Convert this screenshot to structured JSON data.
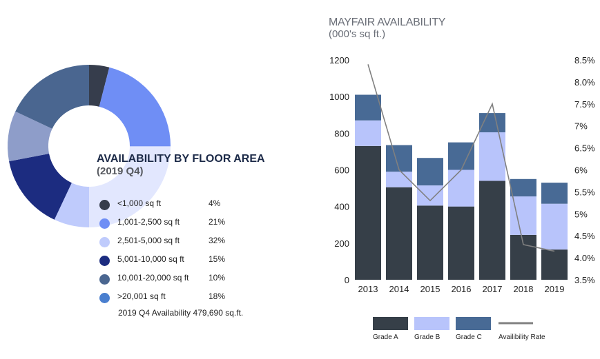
{
  "donut": {
    "title": "AVAILABILITY BY FLOOR AREA",
    "subtitle": "(2019 Q4)",
    "note": "2019 Q4 Availability 479,690 sq.ft.",
    "items": [
      {
        "label": "<1,000 sq ft",
        "percent_label": "4%",
        "value": 4,
        "color": "#363d4c"
      },
      {
        "label": "1,001-2,500 sq ft",
        "percent_label": "21%",
        "value": 21,
        "color": "#6f8ef5"
      },
      {
        "label": "2,501-5,000 sq ft",
        "percent_label": "32%",
        "value": 32,
        "color": "#bfcbfc"
      },
      {
        "label": "5,001-10,000 sq ft",
        "percent_label": "15%",
        "value": 15,
        "color": "#1c2c80"
      },
      {
        "label": "10,001-20,000 sq ft",
        "percent_label": "10%",
        "value": 10,
        "color": "#8e9dc9"
      },
      {
        "label": ">20,001 sq ft",
        "percent_label": "18%",
        "value": 18,
        "color": "#4a6690"
      }
    ],
    "legend_dot_colors": [
      "#363d4c",
      "#6f8ef5",
      "#bfcbfc",
      "#1c2c80",
      "#4a6690",
      "#4a7fcf"
    ]
  },
  "chart": {
    "title": "MAYFAIR AVAILABILITY",
    "subtitle": "(000's sq ft.)"
  },
  "chart_data": {
    "type": "bar",
    "stacked": true,
    "title": "MAYFAIR AVAILABILITY (000's sq ft.)",
    "categories": [
      "2013",
      "2014",
      "2015",
      "2016",
      "2017",
      "2018",
      "2019"
    ],
    "series": [
      {
        "name": "Grade A",
        "values": [
          730,
          505,
          405,
          400,
          540,
          245,
          165
        ],
        "color": "#363f48"
      },
      {
        "name": "Grade B",
        "values": [
          140,
          85,
          110,
          200,
          265,
          210,
          250
        ],
        "color": "#b8c4fb"
      },
      {
        "name": "Grade C",
        "values": [
          140,
          145,
          150,
          150,
          105,
          95,
          115
        ],
        "color": "#486a95"
      }
    ],
    "line": {
      "name": "Availibility Rate",
      "values": [
        8.4,
        6.0,
        5.3,
        6.0,
        7.5,
        4.3,
        4.15
      ],
      "color": "#808080"
    },
    "ylim": [
      0,
      1200
    ],
    "yticks": [
      "0",
      "200",
      "400",
      "600",
      "800",
      "1000",
      "1200"
    ],
    "y2lim": [
      3.5,
      8.5
    ],
    "y2ticks": [
      "3.5%",
      "4.0%",
      "4.5%",
      "5%",
      "5.5%",
      "6%",
      "6.5%",
      "7%",
      "7.5%",
      "8.0%",
      "8.5%"
    ],
    "legend": [
      "Grade A",
      "Grade B",
      "Grade C",
      "Availibility Rate"
    ]
  }
}
